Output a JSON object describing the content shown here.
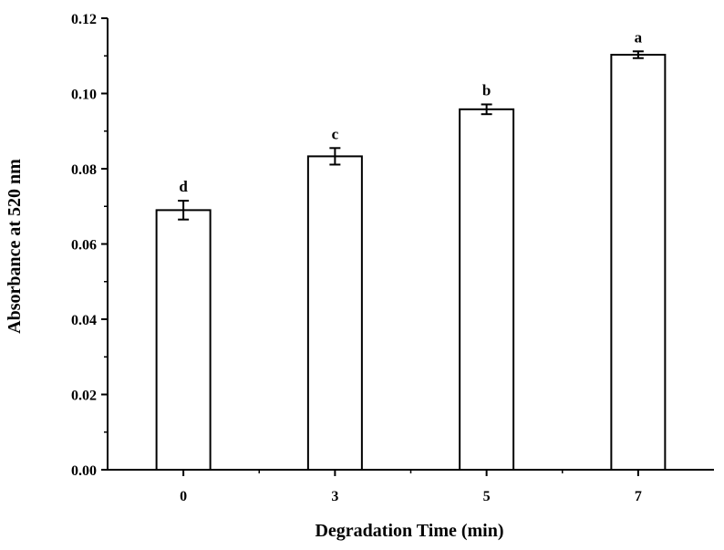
{
  "chart_data": {
    "type": "bar",
    "title": "",
    "xlabel": "Degradation Time (min)",
    "ylabel": "Absorbance at 520 nm",
    "categories": [
      "0",
      "3",
      "5",
      "7"
    ],
    "values": [
      0.069,
      0.0833,
      0.0958,
      0.1103
    ],
    "errors": [
      0.0025,
      0.0022,
      0.0013,
      0.0009
    ],
    "significance_letters": [
      "d",
      "c",
      "b",
      "a"
    ],
    "ylim": [
      0,
      0.12
    ],
    "yticks": [
      "0.00",
      "0.02",
      "0.04",
      "0.06",
      "0.08",
      "0.10",
      "0.12"
    ],
    "grid": false,
    "legend": "none",
    "bar_fill": "#ffffff",
    "bar_stroke": "#000000"
  }
}
